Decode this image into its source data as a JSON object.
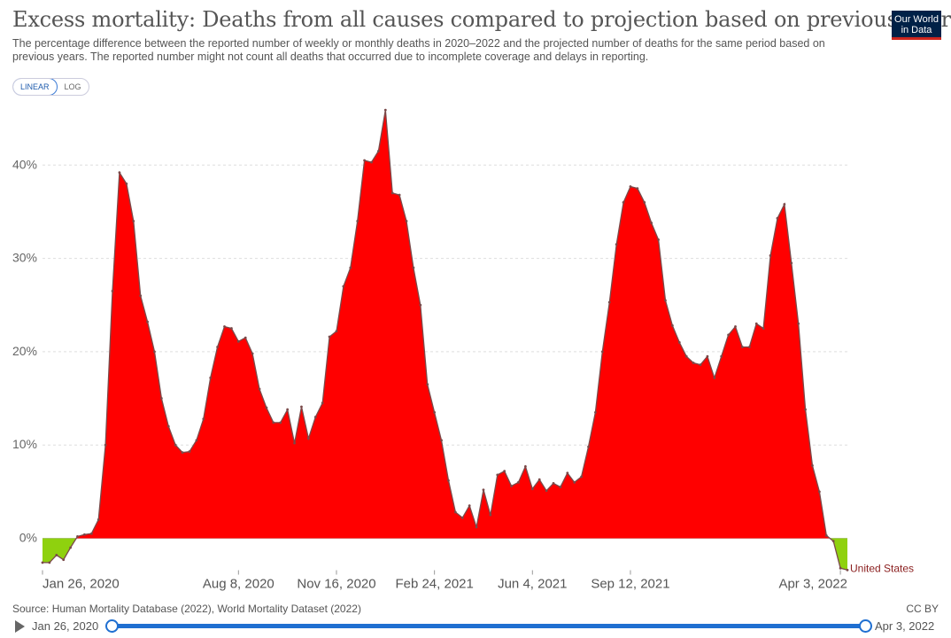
{
  "header": {
    "title": "Excess mortality: Deaths from all causes compared to projection based on previous years",
    "subtitle": "The percentage difference between the reported number of weekly or monthly deaths in 2020–2022 and the projected number of deaths for the same period based on previous years. The reported number might not count all deaths that occurred due to incomplete coverage and delays in reporting.",
    "logo_line1": "Our World",
    "logo_line2": "in Data"
  },
  "controls": {
    "linear_label": "LINEAR",
    "log_label": "LOG",
    "active": "LINEAR"
  },
  "footer": {
    "source": "Source: Human Mortality Database (2022), World Mortality Dataset (2022)",
    "license": "CC BY"
  },
  "timeline": {
    "start": "Jan 26, 2020",
    "end": "Apr 3, 2022"
  },
  "colors": {
    "positive_fill": "#ff0000",
    "negative_fill": "#8fd10e",
    "line": "#7a4a4a",
    "series_label": "#8b2020"
  },
  "chart_data": {
    "type": "area",
    "title": "Excess mortality: Deaths from all causes compared to projection based on previous years",
    "ylabel": "",
    "xlabel": "",
    "ylim": [
      -3.5,
      46
    ],
    "yticks": [
      0,
      10,
      20,
      30,
      40
    ],
    "ytick_labels": [
      "0%",
      "10%",
      "20%",
      "30%",
      "40%"
    ],
    "xtick_labels": [
      "Jan 26, 2020",
      "Aug 8, 2020",
      "Nov 16, 2020",
      "Feb 24, 2021",
      "Jun 4, 2021",
      "Sep 12, 2021",
      "Apr 3, 2022"
    ],
    "xtick_weeks": [
      0,
      28,
      42,
      56,
      70,
      84,
      114
    ],
    "x_start": "Jan 26, 2020",
    "x_end": "Apr 3, 2022",
    "grid": true,
    "series": [
      {
        "name": "United States",
        "values": [
          -2.6,
          -2.6,
          -1.8,
          -2.3,
          -1.0,
          0.2,
          0.4,
          0.5,
          2.0,
          10.0,
          26.5,
          39.2,
          38.0,
          34.0,
          26.0,
          23.2,
          20.0,
          15.0,
          12.0,
          10.0,
          9.2,
          9.3,
          10.5,
          12.8,
          17.2,
          20.5,
          22.7,
          22.5,
          21.1,
          21.5,
          19.8,
          16.0,
          14.0,
          12.4,
          12.4,
          13.8,
          10.2,
          14.1,
          10.7,
          13.0,
          14.5,
          21.6,
          22.2,
          27.0,
          29.0,
          34.0,
          40.5,
          40.3,
          41.5,
          45.9,
          37.0,
          36.8,
          34.0,
          29.0,
          25.0,
          16.5,
          13.5,
          10.5,
          6.2,
          2.8,
          2.2,
          3.5,
          1.2,
          5.2,
          2.5,
          6.8,
          7.2,
          5.6,
          6.0,
          7.7,
          5.3,
          6.3,
          5.1,
          5.9,
          5.5,
          7.0,
          6.0,
          6.6,
          9.8,
          13.5,
          20.0,
          25.3,
          31.5,
          36.0,
          37.7,
          37.5,
          36.0,
          33.8,
          32.0,
          25.5,
          22.8,
          21.0,
          19.5,
          18.8,
          18.6,
          19.5,
          17.2,
          19.5,
          21.8,
          22.7,
          20.5,
          20.5,
          23.0,
          22.5,
          30.3,
          34.3,
          35.8,
          29.5,
          23.0,
          13.8,
          7.8,
          5.0,
          0.3,
          -0.3,
          -3.2,
          -3.4
        ]
      }
    ],
    "series_label": "United States"
  }
}
